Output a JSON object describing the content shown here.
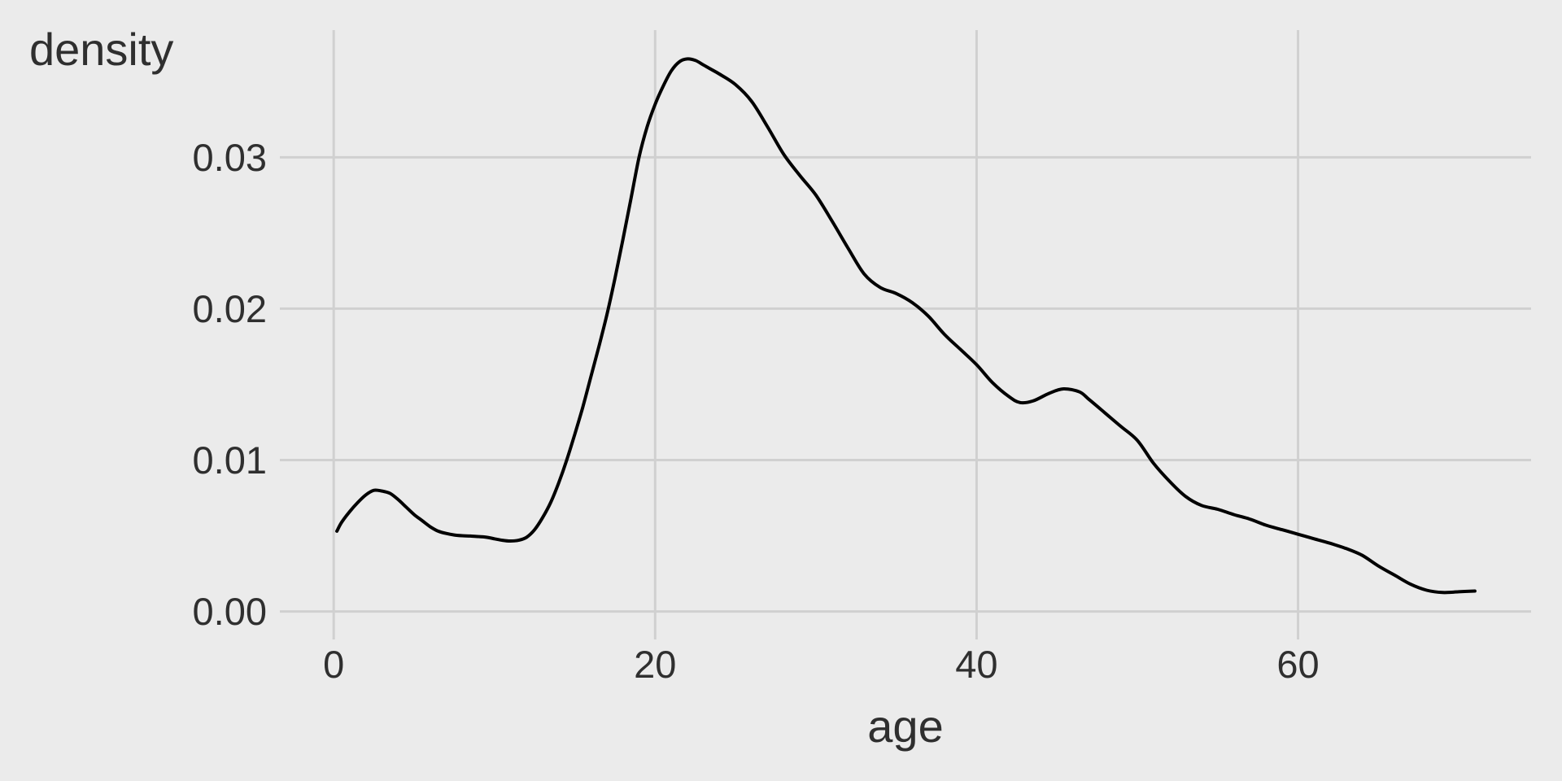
{
  "figure": {
    "background_color": "#EBEBEB",
    "grid_color": "#D0D0D0",
    "curve_color": "#000000",
    "text_color": "#2F2F2F"
  },
  "chart_data": {
    "type": "line",
    "subtype": "kernel-density-estimate",
    "title": "",
    "xlabel": "age",
    "ylabel": "density",
    "legend": false,
    "grid": true,
    "x_domain": [
      -3.35,
      74.5
    ],
    "y_domain": [
      -0.00185,
      0.0384
    ],
    "x_tick_values": [
      0,
      20,
      40,
      60
    ],
    "x_tick_labels": [
      "0",
      "20",
      "40",
      "60"
    ],
    "y_tick_values": [
      0,
      0.01,
      0.02,
      0.03
    ],
    "y_tick_labels": [
      "0.00",
      "0.01",
      "0.02",
      "0.03"
    ],
    "series": [
      {
        "name": "density of age",
        "x": [
          0.2,
          0.5,
          1,
          1.5,
          2,
          2.5,
          3,
          3.5,
          4,
          4.5,
          5,
          5.5,
          6,
          6.5,
          7,
          7.5,
          8,
          8.5,
          9,
          9.5,
          10,
          10.5,
          11,
          11.5,
          12,
          12.5,
          13,
          13.5,
          14,
          14.5,
          15,
          15.5,
          16,
          16.5,
          17,
          17.5,
          18,
          18.5,
          19,
          19.5,
          20,
          20.5,
          21,
          21.5,
          22,
          22.5,
          23,
          23.5,
          24,
          25,
          26,
          27,
          28,
          29,
          30,
          31,
          32,
          33,
          34,
          35,
          36,
          37,
          38,
          39,
          40,
          41,
          42,
          42.7,
          43.5,
          44.5,
          45.4,
          46.4,
          47,
          48,
          49,
          50,
          51,
          52,
          53,
          54,
          55,
          56,
          57,
          58,
          59,
          60,
          61,
          62,
          63,
          64,
          65,
          66,
          67,
          68,
          69,
          70,
          71
        ],
        "y": [
          0.0053,
          0.0059,
          0.0066,
          0.0072,
          0.0077,
          0.008,
          0.00795,
          0.0078,
          0.0074,
          0.0069,
          0.0064,
          0.006,
          0.0056,
          0.0053,
          0.00515,
          0.00505,
          0.005,
          0.00498,
          0.00495,
          0.0049,
          0.0048,
          0.0047,
          0.00465,
          0.0047,
          0.0049,
          0.0054,
          0.0062,
          0.0072,
          0.0085,
          0.01,
          0.0117,
          0.0135,
          0.0155,
          0.0175,
          0.0196,
          0.022,
          0.0246,
          0.0273,
          0.03,
          0.032,
          0.0335,
          0.0347,
          0.0357,
          0.0363,
          0.0365,
          0.0364,
          0.0361,
          0.0358,
          0.0355,
          0.0348,
          0.0337,
          0.032,
          0.0302,
          0.0288,
          0.0275,
          0.0258,
          0.024,
          0.0223,
          0.0214,
          0.021,
          0.0204,
          0.0195,
          0.0183,
          0.0173,
          0.0163,
          0.0151,
          0.0142,
          0.0138,
          0.0139,
          0.0144,
          0.0147,
          0.0145,
          0.014,
          0.0131,
          0.0122,
          0.0113,
          0.0098,
          0.0086,
          0.0076,
          0.007,
          0.00675,
          0.0064,
          0.0061,
          0.0057,
          0.0054,
          0.0051,
          0.0048,
          0.0045,
          0.00415,
          0.0037,
          0.003,
          0.0024,
          0.0018,
          0.0014,
          0.00125,
          0.0013,
          0.00135
        ]
      }
    ]
  }
}
